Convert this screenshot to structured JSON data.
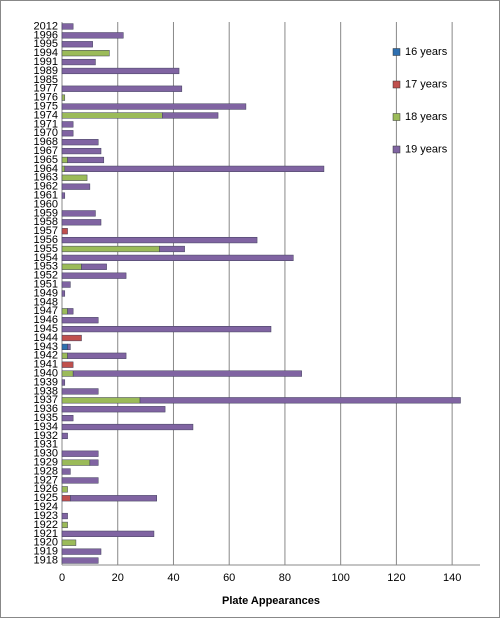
{
  "chart_data": {
    "type": "stacked-barh",
    "x_label": "Plate Appearances",
    "categories": [
      "2012",
      "1996",
      "1995",
      "1994",
      "1991",
      "1989",
      "1985",
      "1977",
      "1976",
      "1975",
      "1974",
      "1971",
      "1970",
      "1968",
      "1967",
      "1965",
      "1964",
      "1963",
      "1962",
      "1961",
      "1960",
      "1959",
      "1958",
      "1957",
      "1956",
      "1955",
      "1954",
      "1953",
      "1952",
      "1951",
      "1949",
      "1948",
      "1947",
      "1946",
      "1945",
      "1944",
      "1943",
      "1942",
      "1941",
      "1940",
      "1939",
      "1938",
      "1937",
      "1936",
      "1935",
      "1934",
      "1932",
      "1931",
      "1930",
      "1929",
      "1928",
      "1927",
      "1926",
      "1925",
      "1924",
      "1923",
      "1922",
      "1921",
      "1920",
      "1919",
      "1918"
    ],
    "series": [
      {
        "name": "16 years",
        "color": "#2e6fb0",
        "values": [
          null,
          null,
          null,
          null,
          null,
          null,
          null,
          null,
          null,
          null,
          null,
          null,
          null,
          null,
          null,
          null,
          null,
          null,
          null,
          null,
          null,
          null,
          null,
          null,
          null,
          null,
          null,
          null,
          null,
          null,
          null,
          null,
          null,
          null,
          null,
          null,
          2,
          null,
          null,
          null,
          null,
          null,
          null,
          null,
          null,
          null,
          null,
          null,
          null,
          null,
          null,
          null,
          null,
          null,
          null,
          null,
          null,
          null,
          null,
          null,
          null
        ]
      },
      {
        "name": "17 years",
        "color": "#c0504d",
        "values": [
          null,
          null,
          null,
          null,
          null,
          null,
          null,
          null,
          null,
          null,
          null,
          null,
          null,
          null,
          null,
          null,
          null,
          null,
          null,
          null,
          null,
          null,
          null,
          2,
          null,
          null,
          null,
          null,
          null,
          null,
          null,
          null,
          null,
          null,
          null,
          7,
          null,
          null,
          4,
          null,
          null,
          null,
          null,
          null,
          null,
          null,
          null,
          null,
          null,
          null,
          null,
          null,
          null,
          3,
          null,
          null,
          null,
          null,
          null,
          null,
          null
        ]
      },
      {
        "name": "18 years",
        "color": "#9bbb59",
        "values": [
          null,
          null,
          null,
          17,
          null,
          null,
          null,
          null,
          1,
          null,
          36,
          null,
          null,
          null,
          null,
          2,
          1,
          9,
          null,
          null,
          null,
          null,
          null,
          null,
          null,
          35,
          null,
          7,
          null,
          null,
          null,
          null,
          2,
          null,
          null,
          null,
          null,
          2,
          null,
          4,
          null,
          null,
          28,
          null,
          null,
          null,
          null,
          null,
          null,
          10,
          null,
          null,
          2,
          null,
          null,
          null,
          2,
          null,
          5,
          null,
          null
        ]
      },
      {
        "name": "19 years",
        "color": "#8064a2",
        "values": [
          4,
          22,
          11,
          null,
          12,
          42,
          null,
          43,
          null,
          66,
          20,
          4,
          4,
          13,
          14,
          13,
          93,
          null,
          10,
          1,
          null,
          12,
          14,
          null,
          70,
          9,
          83,
          9,
          23,
          3,
          1,
          null,
          2,
          13,
          75,
          null,
          1,
          21,
          null,
          82,
          1,
          13,
          115,
          37,
          4,
          47,
          2,
          null,
          13,
          3,
          3,
          13,
          null,
          31,
          null,
          2,
          null,
          33,
          null,
          14,
          13
        ]
      }
    ],
    "xlim": [
      0,
      150
    ],
    "xticks": [
      0,
      20,
      40,
      60,
      80,
      100,
      120,
      140
    ],
    "grid": true,
    "legend": "right"
  }
}
